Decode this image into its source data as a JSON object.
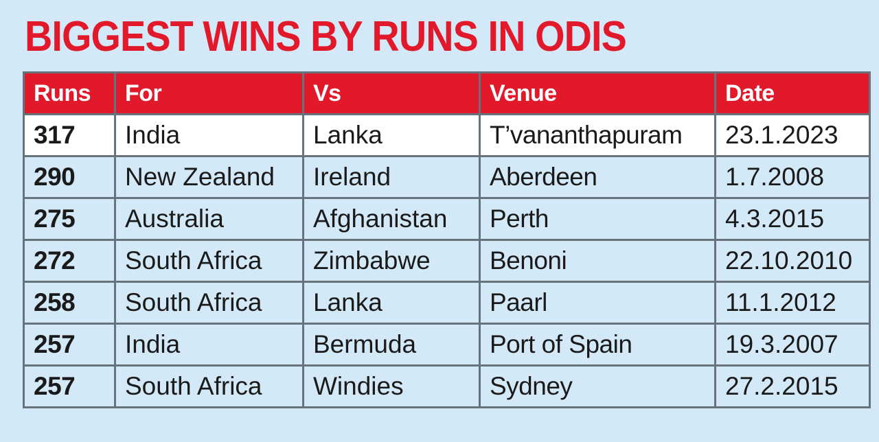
{
  "title": "BIGGEST WINS BY RUNS IN ODIS",
  "table": {
    "headers": [
      "Runs",
      "For",
      "Vs",
      "Venue",
      "Date"
    ],
    "rows": [
      [
        "317",
        "India",
        "Lanka",
        "T’vananthapuram",
        "23.1.2023"
      ],
      [
        "290",
        "New Zealand",
        "Ireland",
        "Aberdeen",
        "1.7.2008"
      ],
      [
        "275",
        "Australia",
        "Afghanistan",
        "Perth",
        "4.3.2015"
      ],
      [
        "272",
        "South Africa",
        "Zimbabwe",
        "Benoni",
        "22.10.2010"
      ],
      [
        "258",
        "South Africa",
        "Lanka",
        "Paarl",
        "11.1.2012"
      ],
      [
        "257",
        "India",
        "Bermuda",
        "Port of Spain",
        "19.3.2007"
      ],
      [
        "257",
        "South Africa",
        "Windies",
        "Sydney",
        "27.2.2015"
      ]
    ]
  },
  "colors": {
    "accent": "#e1192b",
    "background": "#d3e9f7",
    "highlight_row": "#ffffff",
    "border": "#66737d"
  }
}
